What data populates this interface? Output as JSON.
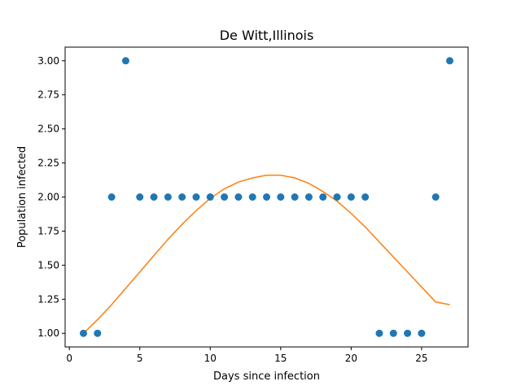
{
  "chart_data": {
    "type": "scatter",
    "title": "De Witt,Illinois",
    "xlabel": "Days since infection",
    "ylabel": "Population infected",
    "xlim": [
      -0.3,
      28.3
    ],
    "ylim": [
      0.9,
      3.1
    ],
    "x_ticks": [
      0,
      5,
      10,
      15,
      20,
      25
    ],
    "x_tick_labels": [
      "0",
      "5",
      "10",
      "15",
      "20",
      "25"
    ],
    "y_ticks": [
      1.0,
      1.25,
      1.5,
      1.75,
      2.0,
      2.25,
      2.5,
      2.75,
      3.0
    ],
    "y_tick_labels": [
      "1.00",
      "1.25",
      "1.50",
      "1.75",
      "2.00",
      "2.25",
      "2.50",
      "2.75",
      "3.00"
    ],
    "grid": false,
    "series": [
      {
        "kind": "scatter",
        "color": "#1f77b4",
        "x": [
          1,
          2,
          3,
          4,
          5,
          6,
          7,
          8,
          9,
          10,
          11,
          12,
          13,
          14,
          15,
          16,
          17,
          18,
          19,
          20,
          21,
          22,
          23,
          24,
          25,
          26,
          27
        ],
        "y": [
          1,
          1,
          2,
          3,
          2,
          2,
          2,
          2,
          2,
          2,
          2,
          2,
          2,
          2,
          2,
          2,
          2,
          2,
          2,
          2,
          2,
          1,
          1,
          1,
          1,
          2,
          3
        ]
      },
      {
        "kind": "line",
        "color": "#ff7f0e",
        "x": [
          1,
          2,
          3,
          4,
          5,
          6,
          7,
          8,
          9,
          10,
          11,
          12,
          13,
          14,
          15,
          16,
          17,
          18,
          19,
          20,
          21,
          22,
          23,
          24,
          25,
          26,
          27
        ],
        "y": [
          1.0,
          1.1,
          1.21,
          1.33,
          1.45,
          1.57,
          1.69,
          1.8,
          1.9,
          1.99,
          2.06,
          2.11,
          2.14,
          2.16,
          2.16,
          2.14,
          2.1,
          2.04,
          1.97,
          1.88,
          1.78,
          1.67,
          1.56,
          1.45,
          1.34,
          1.23,
          1.21
        ]
      }
    ]
  }
}
